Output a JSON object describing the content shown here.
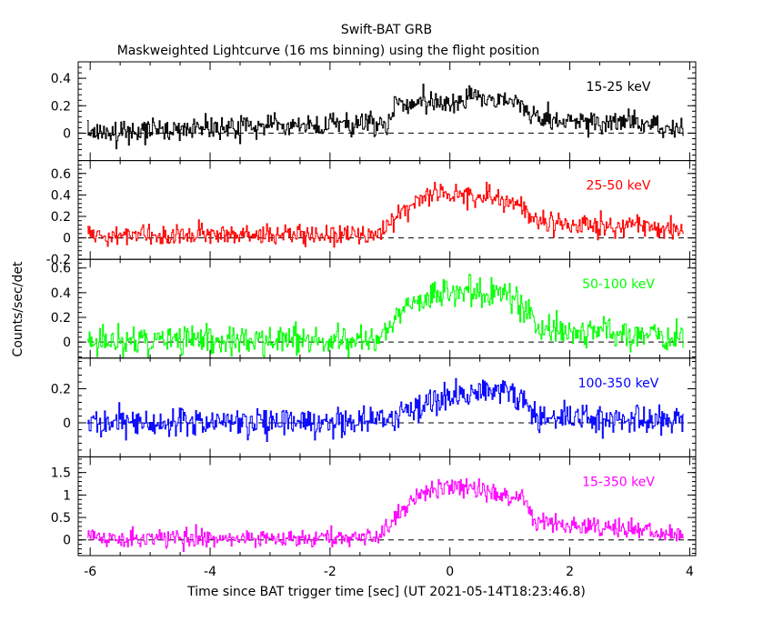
{
  "chart_data": {
    "type": "line",
    "title": "Swift-BAT GRB",
    "subtitle": "Maskweighted Lightcurve (16 ms binning) using the flight position",
    "xlabel": "Time since BAT trigger time [sec] (UT 2021-05-14T18:23:46.8)",
    "ylabel": "Counts/sec/det",
    "xlim": [
      -6.2,
      4.1
    ],
    "x_ticks": [
      -6,
      -4,
      -2,
      0,
      2,
      4
    ],
    "x_tick_labels": [
      "-6",
      "-4",
      "-2",
      "0",
      "2",
      "4"
    ],
    "x_range": [
      -6.05,
      3.9
    ],
    "bin_width": 0.016,
    "style": "histogram-step",
    "series": [
      {
        "name": "15-25 keV",
        "color": "#000000",
        "ylim": [
          -0.2,
          0.52
        ],
        "y_ticks": [
          0,
          0.2,
          0.4
        ],
        "y_tick_labels": [
          "0",
          "0.2",
          "0.4"
        ],
        "profile": [
          [
            -6.05,
            0.0
          ],
          [
            -3.0,
            0.05
          ],
          [
            -1.0,
            0.07
          ],
          [
            -0.9,
            0.2
          ],
          [
            -0.5,
            0.23
          ],
          [
            0.0,
            0.24
          ],
          [
            0.5,
            0.25
          ],
          [
            1.0,
            0.22
          ],
          [
            1.2,
            0.22
          ],
          [
            1.4,
            0.12
          ],
          [
            2.0,
            0.1
          ],
          [
            3.0,
            0.07
          ],
          [
            3.9,
            0.03
          ]
        ],
        "noise": 0.06
      },
      {
        "name": "25-50 keV",
        "color": "#ff0000",
        "ylim": [
          -0.2,
          0.72
        ],
        "y_ticks": [
          -0.2,
          0,
          0.2,
          0.4,
          0.6
        ],
        "y_tick_labels": [
          "-0.2",
          "0",
          "0.2",
          "0.4",
          "0.6"
        ],
        "profile": [
          [
            -6.05,
            0.02
          ],
          [
            -1.2,
            0.03
          ],
          [
            -1.0,
            0.12
          ],
          [
            -0.6,
            0.32
          ],
          [
            -0.2,
            0.42
          ],
          [
            0.3,
            0.4
          ],
          [
            0.8,
            0.38
          ],
          [
            1.2,
            0.3
          ],
          [
            1.4,
            0.15
          ],
          [
            2.0,
            0.12
          ],
          [
            3.0,
            0.1
          ],
          [
            3.9,
            0.06
          ]
        ],
        "noise": 0.07
      },
      {
        "name": "50-100 keV",
        "color": "#00ff00",
        "ylim": [
          -0.13,
          0.67
        ],
        "y_ticks": [
          0,
          0.2,
          0.4,
          0.6
        ],
        "y_tick_labels": [
          "0",
          "0.2",
          "0.4",
          "0.6"
        ],
        "profile": [
          [
            -6.05,
            0.01
          ],
          [
            -1.2,
            0.02
          ],
          [
            -1.0,
            0.15
          ],
          [
            -0.6,
            0.32
          ],
          [
            0.0,
            0.4
          ],
          [
            0.5,
            0.42
          ],
          [
            1.0,
            0.38
          ],
          [
            1.2,
            0.3
          ],
          [
            1.5,
            0.12
          ],
          [
            2.0,
            0.08
          ],
          [
            3.0,
            0.06
          ],
          [
            3.9,
            0.04
          ]
        ],
        "noise": 0.08
      },
      {
        "name": "100-350 keV",
        "color": "#0000ff",
        "ylim": [
          -0.2,
          0.38
        ],
        "y_ticks": [
          0,
          0.2
        ],
        "y_tick_labels": [
          "0",
          "0.2"
        ],
        "profile": [
          [
            -6.05,
            0.0
          ],
          [
            -3.0,
            0.0
          ],
          [
            -1.0,
            0.02
          ],
          [
            -0.6,
            0.08
          ],
          [
            0.0,
            0.15
          ],
          [
            0.5,
            0.17
          ],
          [
            1.0,
            0.18
          ],
          [
            1.2,
            0.15
          ],
          [
            1.4,
            0.03
          ],
          [
            2.5,
            0.02
          ],
          [
            3.9,
            0.0
          ]
        ],
        "noise": 0.06
      },
      {
        "name": "15-350 keV",
        "color": "#ff00ff",
        "ylim": [
          -0.35,
          1.85
        ],
        "y_ticks": [
          0,
          0.5,
          1,
          1.5
        ],
        "y_tick_labels": [
          "0",
          "0.5",
          "1",
          "1.5"
        ],
        "profile": [
          [
            -6.05,
            0.03
          ],
          [
            -1.2,
            0.05
          ],
          [
            -1.0,
            0.3
          ],
          [
            -0.6,
            0.9
          ],
          [
            -0.2,
            1.15
          ],
          [
            0.3,
            1.15
          ],
          [
            0.8,
            1.05
          ],
          [
            1.2,
            0.95
          ],
          [
            1.4,
            0.45
          ],
          [
            2.0,
            0.3
          ],
          [
            3.0,
            0.25
          ],
          [
            3.9,
            0.12
          ]
        ],
        "noise": 0.14
      }
    ]
  }
}
